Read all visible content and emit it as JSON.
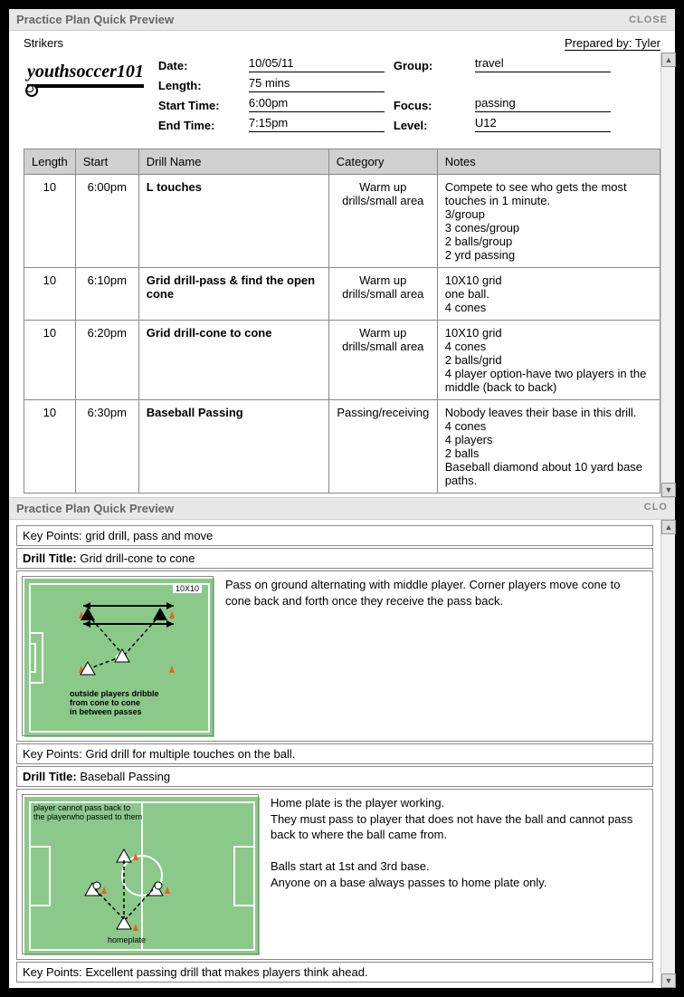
{
  "header": {
    "title": "Practice Plan Quick Preview",
    "close": "CLOSE"
  },
  "meta": {
    "team": "Strikers",
    "prepared_by_label": "Prepared by:",
    "prepared_by": "Tyler"
  },
  "logo": {
    "text": "youthsoccer101"
  },
  "info": {
    "date_label": "Date:",
    "date": "10/05/11",
    "length_label": "Length:",
    "length": "75 mins",
    "start_label": "Start Time:",
    "start": "6:00pm",
    "end_label": "End Time:",
    "end": "7:15pm",
    "group_label": "Group:",
    "group": "travel",
    "focus_label": "Focus:",
    "focus": "passing",
    "level_label": "Level:",
    "level": "U12"
  },
  "table": {
    "headers": {
      "length": "Length",
      "start": "Start",
      "name": "Drill Name",
      "category": "Category",
      "notes": "Notes"
    },
    "rows": [
      {
        "length": "10",
        "start": "6:00pm",
        "name": "L touches",
        "category": "Warm up drills/small area",
        "notes": "Compete to see who gets the most touches in 1 minute.\n3/group\n3 cones/group\n2 balls/group\n2 yrd passing"
      },
      {
        "length": "10",
        "start": "6:10pm",
        "name": "Grid drill-pass & find the open cone",
        "category": "Warm up drills/small area",
        "notes": "10X10 grid\none ball.\n4 cones"
      },
      {
        "length": "10",
        "start": "6:20pm",
        "name": "Grid drill-cone to cone",
        "category": "Warm up drills/small area",
        "notes": "10X10 grid\n4 cones\n2 balls/grid\n4 player option-have two players in the middle (back to back)"
      },
      {
        "length": "10",
        "start": "6:30pm",
        "name": "Baseball Passing",
        "category": "Passing/receiving",
        "notes": "Nobody leaves their base in this drill.\n4 cones\n4 players\n2 balls\nBaseball diamond about 10 yard base paths."
      }
    ]
  },
  "section2": {
    "title": "Practice Plan Quick Preview",
    "close_partial": "CLO",
    "kp_label": "Key Points:",
    "dt_label": "Drill Title:",
    "kp_top": "grid drill, pass and move",
    "drill1": {
      "title": "Grid drill-cone to cone",
      "field_badge": "10X10",
      "field_caption": "outside players dribble\nfrom cone to cone\nin between passes",
      "desc": "Pass on ground alternating with middle player. Corner players move cone to cone back and forth once they receive the pass back.",
      "kp": "Grid drill for multiple touches on the ball."
    },
    "drill2": {
      "title": "Baseball Passing",
      "field_caption_top": "player cannot pass back to\nthe playerwho passed to them",
      "field_caption_bottom": "homeplate",
      "desc": "Home plate is the player working.\nThey must pass to player that does not have the ball and cannot pass back to where the ball came from.\n\nBalls start at 1st and 3rd base.\nAnyone on a base always passes to home plate only.",
      "kp": "Excellent passing drill that makes players think ahead."
    }
  },
  "style": {
    "field_bg": "#8bc98b",
    "cone_color": "#e8621a",
    "line_color": "#ffffff",
    "arrow_color": "#000000"
  }
}
